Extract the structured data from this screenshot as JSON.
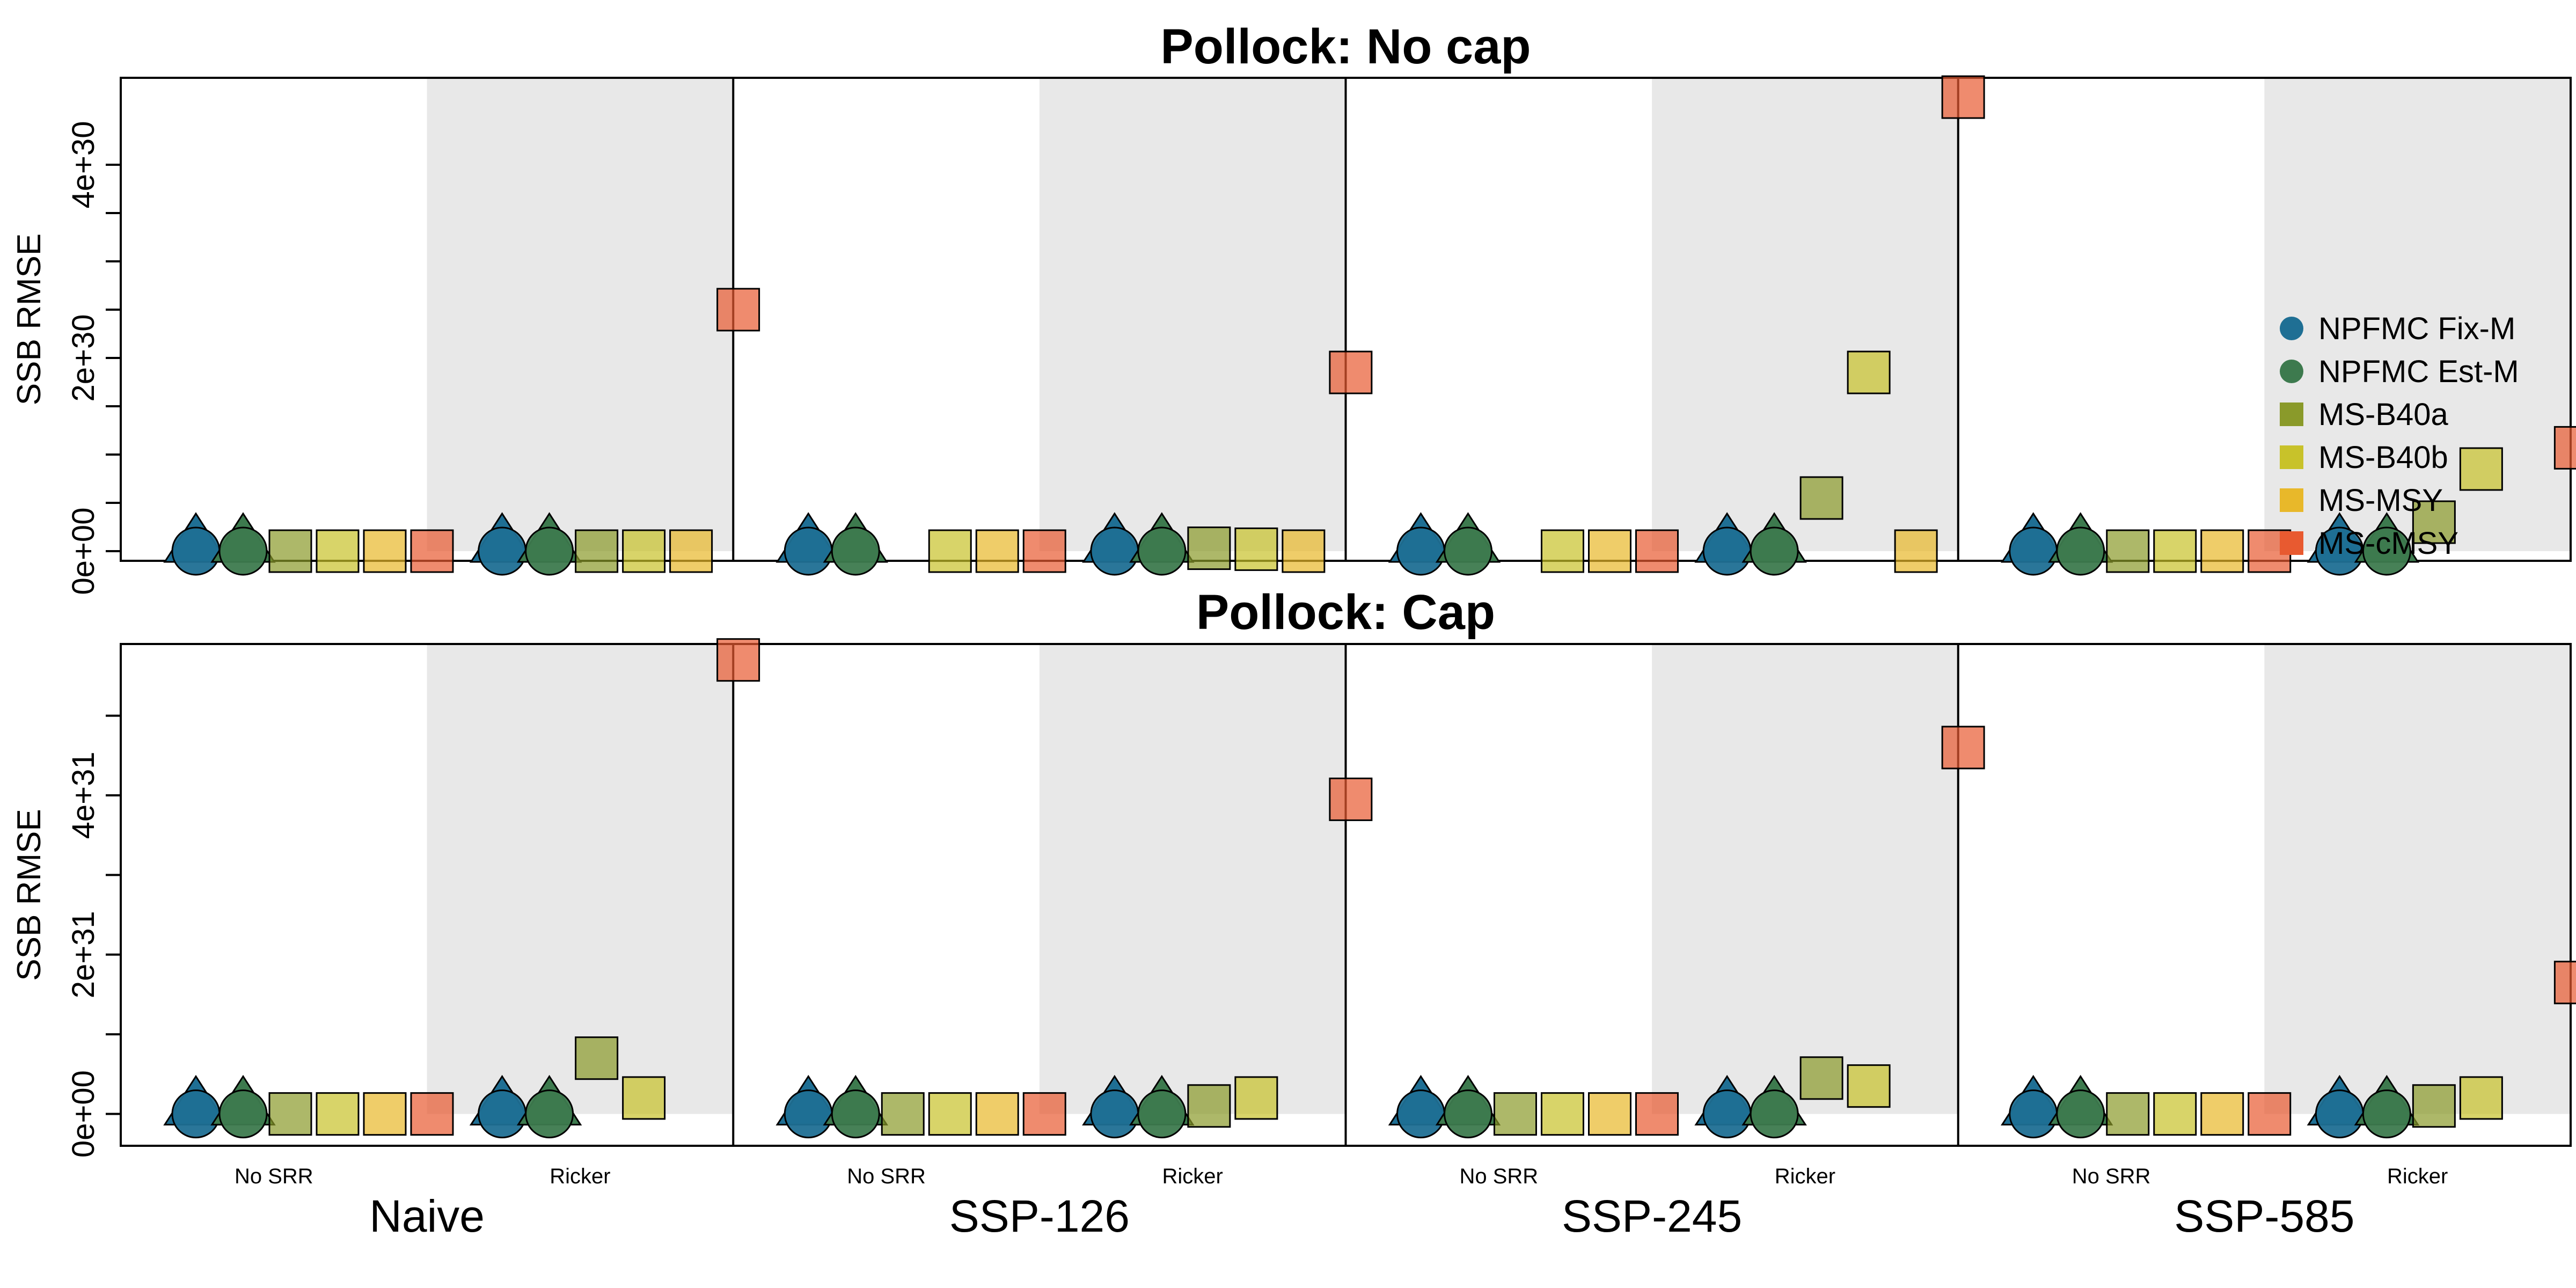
{
  "legend": {
    "placement": "right",
    "items": [
      {
        "label": "NPFMC Fix-M",
        "color": "#1f6f94",
        "shape": "circle"
      },
      {
        "label": "NPFMC Est-M",
        "color": "#3d7a4e",
        "shape": "circle"
      },
      {
        "label": "MS-B40a",
        "color": "#8a9a2a",
        "shape": "square"
      },
      {
        "label": "MS-B40b",
        "color": "#c8c22a",
        "shape": "square"
      },
      {
        "label": "MS-MSY",
        "color": "#e8b82a",
        "shape": "square"
      },
      {
        "label": "MS-cMSY",
        "color": "#e85a30",
        "shape": "square"
      }
    ]
  },
  "chart_data": [
    {
      "type": "scatter",
      "title": "Pollock: No cap",
      "ylabel": "SSB RMSE",
      "ylim": [
        -1e+29,
        4.9e+30
      ],
      "ytick_labels": [
        "0e+00",
        "2e+30",
        "4e+30"
      ],
      "yticks": [
        0,
        5e+29,
        1e+30,
        1.5e+30,
        2e+30,
        2.5e+30,
        3e+30,
        3.5e+30,
        4e+30
      ],
      "groups": [
        "Naive",
        "SSP-126",
        "SSP-245",
        "SSP-585"
      ],
      "subgroups": [
        "No SRR",
        "Ricker"
      ],
      "shading": "Ricker",
      "series": [
        {
          "name": "NPFMC Fix-M",
          "values": [
            [
              0,
              0
            ],
            [
              0,
              0
            ],
            [
              0,
              0
            ],
            [
              0,
              0
            ]
          ]
        },
        {
          "name": "NPFMC Est-M",
          "values": [
            [
              0,
              0
            ],
            [
              0,
              0
            ],
            [
              0,
              0
            ],
            [
              0,
              0
            ]
          ]
        },
        {
          "name": "MS-B40a",
          "values": [
            [
              0,
              0
            ],
            [
              null,
              3e+28
            ],
            [
              null,
              5.5e+29
            ],
            [
              0,
              3e+29
            ]
          ]
        },
        {
          "name": "MS-B40b",
          "values": [
            [
              0,
              0
            ],
            [
              0,
              2e+28
            ],
            [
              0,
              1.85e+30
            ],
            [
              0,
              8.5e+29
            ]
          ]
        },
        {
          "name": "MS-MSY",
          "values": [
            [
              0,
              0
            ],
            [
              0,
              0
            ],
            [
              0,
              0
            ],
            [
              0,
              null
            ]
          ]
        },
        {
          "name": "MS-cMSY",
          "values": [
            [
              0,
              2.5e+30
            ],
            [
              0,
              1.85e+30
            ],
            [
              0,
              4.7e+30
            ],
            [
              0,
              1.07e+30
            ]
          ]
        }
      ]
    },
    {
      "type": "scatter",
      "title": "Pollock: Cap",
      "ylabel": "SSB RMSE",
      "ylim": [
        -4e+30,
        5.9e+31
      ],
      "ytick_labels": [
        "0e+00",
        "2e+31",
        "4e+31"
      ],
      "yticks": [
        0,
        1e+31,
        2e+31,
        3e+31,
        4e+31,
        5e+31
      ],
      "groups": [
        "Naive",
        "SSP-126",
        "SSP-245",
        "SSP-585"
      ],
      "subgroups": [
        "No SRR",
        "Ricker"
      ],
      "shading": "Ricker",
      "series": [
        {
          "name": "NPFMC Fix-M",
          "values": [
            [
              0,
              0
            ],
            [
              0,
              0
            ],
            [
              0,
              0
            ],
            [
              0,
              0
            ]
          ]
        },
        {
          "name": "NPFMC Est-M",
          "values": [
            [
              0,
              0
            ],
            [
              0,
              0
            ],
            [
              0,
              0
            ],
            [
              0,
              0
            ]
          ]
        },
        {
          "name": "MS-B40a",
          "values": [
            [
              0,
              7e+30
            ],
            [
              0,
              1e+30
            ],
            [
              0,
              4.5e+30
            ],
            [
              0,
              1e+30
            ]
          ]
        },
        {
          "name": "MS-B40b",
          "values": [
            [
              0,
              2e+30
            ],
            [
              0,
              2e+30
            ],
            [
              0,
              3.5e+30
            ],
            [
              0,
              2e+30
            ]
          ]
        },
        {
          "name": "MS-MSY",
          "values": [
            [
              0,
              null
            ],
            [
              0,
              null
            ],
            [
              0,
              null
            ],
            [
              0,
              null
            ]
          ]
        },
        {
          "name": "MS-cMSY",
          "values": [
            [
              0,
              5.7e+31
            ],
            [
              0,
              3.95e+31
            ],
            [
              0,
              4.6e+31
            ],
            [
              0,
              1.65e+31
            ]
          ]
        }
      ]
    }
  ]
}
